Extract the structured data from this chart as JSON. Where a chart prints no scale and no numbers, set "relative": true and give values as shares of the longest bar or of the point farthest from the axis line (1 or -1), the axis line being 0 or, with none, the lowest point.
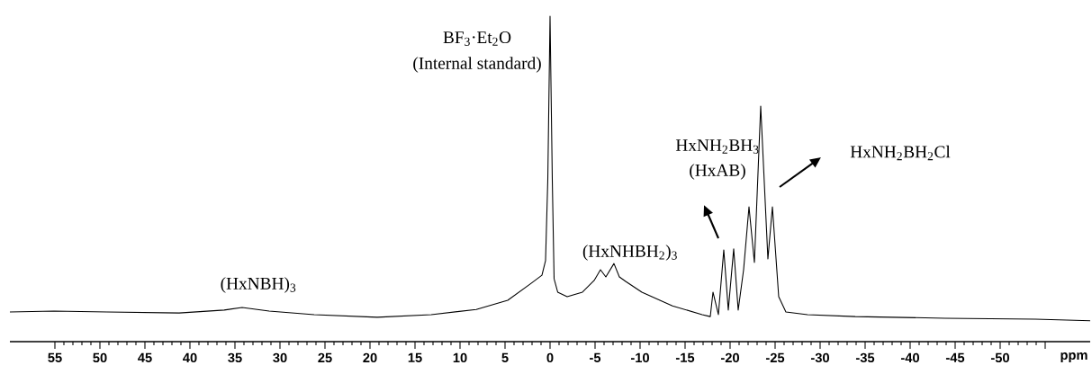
{
  "chart_data": {
    "type": "line",
    "relative": true,
    "xlabel": "ppm",
    "xlim": [
      60,
      -60
    ],
    "xticks": [
      55,
      50,
      45,
      40,
      35,
      30,
      25,
      20,
      15,
      10,
      5,
      0,
      -5,
      -10,
      -15,
      -20,
      -25,
      -30,
      -35,
      -40,
      -45,
      -50,
      {
        "value": -55,
        "label": null
      }
    ],
    "x": [
      60.0,
      55.1,
      49.2,
      41.2,
      36.2,
      34.2,
      31.2,
      26.2,
      19.2,
      13.2,
      8.2,
      4.7,
      2.2,
      0.9,
      0.5,
      0.25,
      0,
      -0.25,
      -0.45,
      -0.85,
      -1.9,
      -3.6,
      -4.9,
      -5.6,
      -6.2,
      -7.1,
      -7.7,
      -8.4,
      -10.2,
      -13.6,
      -16.9,
      -17.8,
      -18.1,
      -18.7,
      -19.3,
      -19.8,
      -20.4,
      -20.9,
      -21.5,
      -22.1,
      -22.7,
      -23.4,
      -24.2,
      -24.7,
      -25.4,
      -26.2,
      -28.6,
      -33.9,
      -43.9,
      -53.9,
      -60.0
    ],
    "series": [
      {
        "color": "#000000",
        "values": [
          0.091,
          0.094,
          0.091,
          0.088,
          0.097,
          0.105,
          0.094,
          0.083,
          0.075,
          0.083,
          0.099,
          0.127,
          0.177,
          0.204,
          0.249,
          0.497,
          1,
          0.497,
          0.193,
          0.152,
          0.138,
          0.152,
          0.188,
          0.221,
          0.199,
          0.24,
          0.199,
          0.185,
          0.152,
          0.11,
          0.083,
          0.077,
          0.152,
          0.083,
          0.282,
          0.097,
          0.285,
          0.097,
          0.221,
          0.414,
          0.243,
          0.724,
          0.254,
          0.414,
          0.138,
          0.091,
          0.083,
          0.077,
          0.072,
          0.069,
          0.064
        ]
      }
    ],
    "annotations": [
      "BF$_{3}$·Et$_{2}$O",
      "(Internal standard)",
      "(HxNBH)$_{3}$",
      "(HxNHBH$_{2}$)$_{3}$",
      "HxNH$_{2}$BH$_{3}$",
      "(HxAB)",
      "HxNH$_{2}$BH$_{2}$Cl"
    ]
  }
}
